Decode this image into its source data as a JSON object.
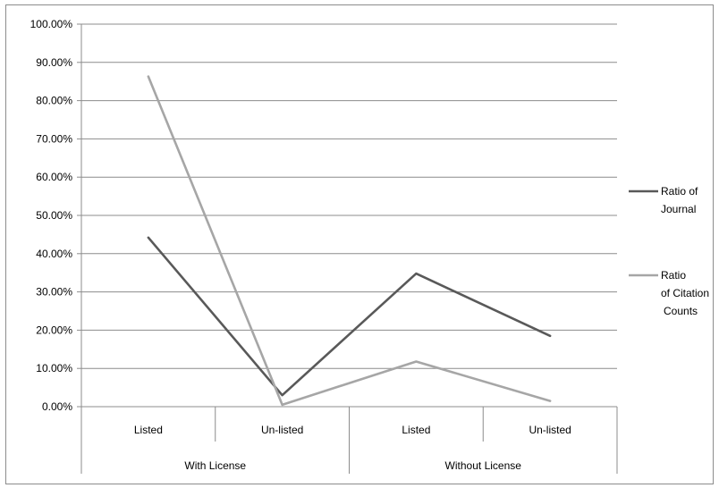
{
  "chart_data": {
    "type": "line",
    "y_ticks": [
      "0.00%",
      "10.00%",
      "20.00%",
      "30.00%",
      "40.00%",
      "50.00%",
      "60.00%",
      "70.00%",
      "80.00%",
      "90.00%",
      "100.00%"
    ],
    "ylim": [
      0,
      100
    ],
    "grid": true,
    "legend_position": "right",
    "categories": [
      "Listed",
      "Un-listed",
      "Listed",
      "Un-listed"
    ],
    "groups": [
      "With License",
      "Without License"
    ],
    "series": [
      {
        "name": "Ratio of Journal",
        "name_lines": [
          "Ratio of",
          "Journal"
        ],
        "color": "#595959",
        "values": [
          44.2,
          3.0,
          34.8,
          18.5
        ]
      },
      {
        "name": "Ratio of Citation Counts",
        "name_lines": [
          "Ratio",
          "of Citation",
          "Counts"
        ],
        "color": "#a6a6a6",
        "values": [
          86.3,
          0.5,
          11.8,
          1.5
        ]
      }
    ]
  }
}
